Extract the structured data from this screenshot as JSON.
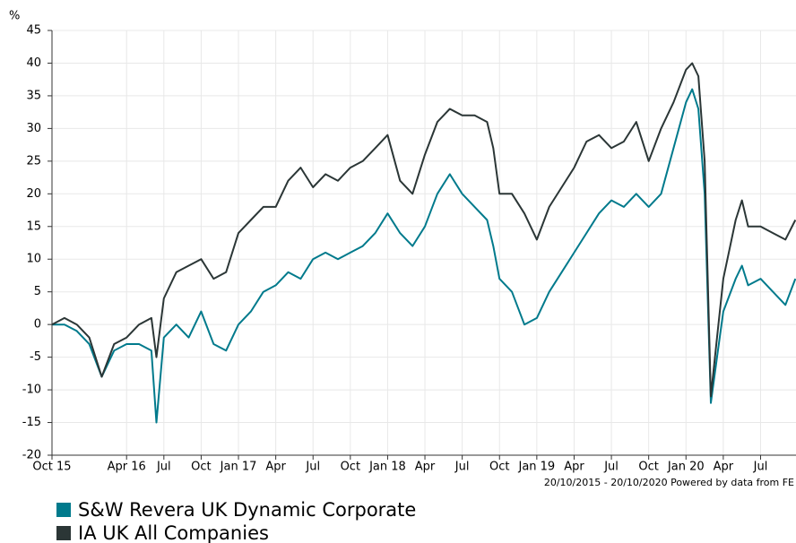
{
  "chart_data": {
    "type": "line",
    "y_label": "%",
    "footnote": "20/10/2015 - 20/10/2020 Powered by data from FE",
    "x": [
      0,
      1,
      2,
      3,
      4,
      5,
      6,
      7,
      8,
      8.4,
      9,
      10,
      11,
      12,
      13,
      14,
      15,
      16,
      17,
      18,
      19,
      20,
      21,
      22,
      23,
      24,
      25,
      26,
      27,
      28,
      29,
      30,
      31,
      32,
      33,
      34,
      35,
      35.5,
      36,
      37,
      38,
      39,
      40,
      41,
      42,
      43,
      44,
      45,
      46,
      47,
      48,
      49,
      50,
      51,
      51.5,
      52,
      52.5,
      53,
      53.5,
      54,
      55,
      55.5,
      56,
      57,
      58,
      59,
      59.8
    ],
    "series": [
      {
        "name": "S&W Revera UK Dynamic Corporate",
        "color": "#007a8c",
        "values": [
          0,
          0,
          -1,
          -3,
          -8,
          -4,
          -3,
          -3,
          -4,
          -15,
          -2,
          0,
          -2,
          2,
          -3,
          -4,
          0,
          2,
          5,
          6,
          8,
          7,
          10,
          11,
          10,
          11,
          12,
          14,
          17,
          14,
          12,
          15,
          20,
          23,
          20,
          18,
          16,
          12,
          7,
          5,
          0,
          1,
          5,
          8,
          11,
          14,
          17,
          19,
          18,
          20,
          18,
          20,
          27,
          34,
          36,
          33,
          20,
          -12,
          -5,
          2,
          7,
          9,
          6,
          7,
          5,
          3,
          7
        ]
      },
      {
        "name": "IA UK All Companies",
        "color": "#2b3636",
        "values": [
          0,
          1,
          0,
          -2,
          -8,
          -3,
          -2,
          0,
          1,
          -5,
          4,
          8,
          9,
          10,
          7,
          8,
          14,
          16,
          18,
          18,
          22,
          24,
          21,
          23,
          22,
          24,
          25,
          27,
          29,
          22,
          20,
          26,
          31,
          33,
          32,
          32,
          31,
          27,
          20,
          20,
          17,
          13,
          18,
          21,
          24,
          28,
          29,
          27,
          28,
          31,
          25,
          30,
          34,
          39,
          40,
          38,
          25,
          -11,
          -2,
          7,
          16,
          19,
          15,
          15,
          14,
          13,
          16
        ]
      }
    ],
    "xlim": [
      0,
      59.85
    ],
    "xticks": [
      {
        "value": 0,
        "label": "Oct 15"
      },
      {
        "value": 6,
        "label": "Apr 16"
      },
      {
        "value": 9,
        "label": "Jul"
      },
      {
        "value": 12,
        "label": "Oct"
      },
      {
        "value": 15,
        "label": "Jan 17"
      },
      {
        "value": 18,
        "label": "Apr"
      },
      {
        "value": 21,
        "label": "Jul"
      },
      {
        "value": 24,
        "label": "Oct"
      },
      {
        "value": 27,
        "label": "Jan 18"
      },
      {
        "value": 30,
        "label": "Apr"
      },
      {
        "value": 33,
        "label": "Jul"
      },
      {
        "value": 36,
        "label": "Oct"
      },
      {
        "value": 39,
        "label": "Jan 19"
      },
      {
        "value": 42,
        "label": "Apr"
      },
      {
        "value": 45,
        "label": "Jul"
      },
      {
        "value": 48,
        "label": "Oct"
      },
      {
        "value": 51,
        "label": "Jan 20"
      },
      {
        "value": 54,
        "label": "Apr"
      },
      {
        "value": 57,
        "label": "Jul"
      }
    ],
    "ylim": [
      -20,
      45
    ],
    "yticks": [
      -20,
      -15,
      -10,
      -5,
      0,
      5,
      10,
      15,
      20,
      25,
      30,
      35,
      40,
      45
    ],
    "grid": true
  }
}
